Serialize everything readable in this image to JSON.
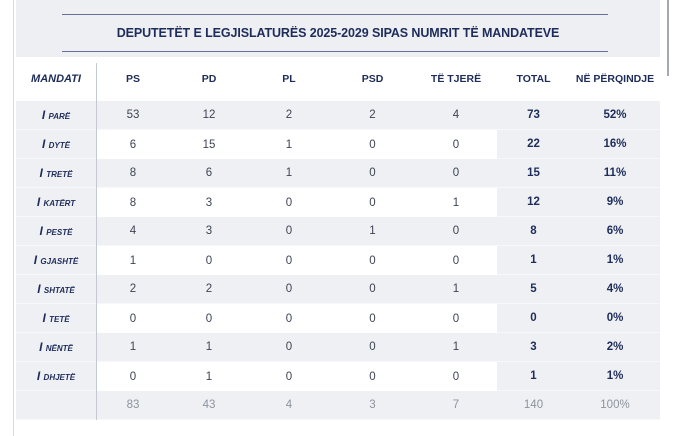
{
  "chart_data": {
    "type": "table",
    "title": "DEPUTETËT E LEGJISLATURËS 2025-2029 SIPAS NUMRIT TË MANDATEVE",
    "columns": [
      "MANDATI",
      "PS",
      "PD",
      "PL",
      "PSD",
      "TË TJERË",
      "TOTAL",
      "NË PËRQINDJE"
    ],
    "rows": [
      {
        "label": "I parë",
        "values": [
          53,
          12,
          2,
          2,
          4
        ],
        "total": 73,
        "percent": "52%"
      },
      {
        "label": "I dytë",
        "values": [
          6,
          15,
          1,
          0,
          0
        ],
        "total": 22,
        "percent": "16%"
      },
      {
        "label": "I tretë",
        "values": [
          8,
          6,
          1,
          0,
          0
        ],
        "total": 15,
        "percent": "11%"
      },
      {
        "label": "I katërt",
        "values": [
          8,
          3,
          0,
          0,
          1
        ],
        "total": 12,
        "percent": "9%"
      },
      {
        "label": "I pestë",
        "values": [
          4,
          3,
          0,
          1,
          0
        ],
        "total": 8,
        "percent": "6%"
      },
      {
        "label": "I gjashtë",
        "values": [
          1,
          0,
          0,
          0,
          0
        ],
        "total": 1,
        "percent": "1%"
      },
      {
        "label": "I shtatë",
        "values": [
          2,
          2,
          0,
          0,
          1
        ],
        "total": 5,
        "percent": "4%"
      },
      {
        "label": "I tetë",
        "values": [
          0,
          0,
          0,
          0,
          0
        ],
        "total": 0,
        "percent": "0%"
      },
      {
        "label": "I nëntë",
        "values": [
          1,
          1,
          0,
          0,
          1
        ],
        "total": 3,
        "percent": "2%"
      },
      {
        "label": "I dhjetë",
        "values": [
          0,
          1,
          0,
          0,
          0
        ],
        "total": 1,
        "percent": "1%"
      }
    ],
    "totals_row": {
      "label": "",
      "values": [
        83,
        43,
        4,
        3,
        7
      ],
      "total": 140,
      "percent": "100%"
    },
    "layout_hints": {
      "striped_rows": true,
      "first_striped_row_index": 0,
      "always_shaded_columns": [
        "MANDATI",
        "TOTAL",
        "NË PËRQINDJE"
      ]
    }
  },
  "colors": {
    "accent_navy": "#1e2c5a",
    "stripe_gray": "#eef0f3",
    "title_band_gray": "#edeff3",
    "data_text": "#3d4454",
    "totals_text": "#8e939d",
    "divider": "#c4c8d0",
    "title_rule": "#64719a"
  }
}
